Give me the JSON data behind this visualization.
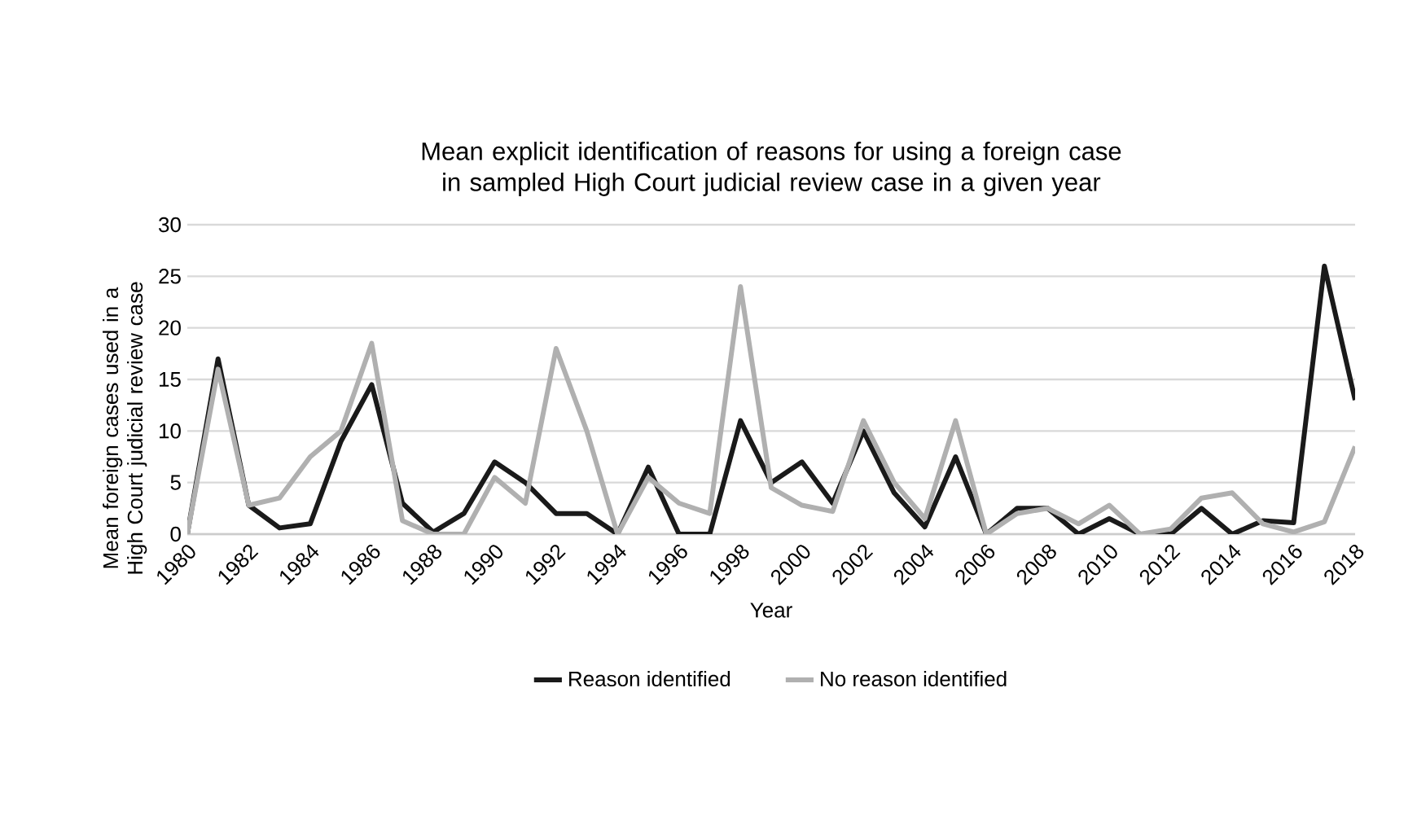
{
  "chart_data": {
    "type": "line",
    "title": "Mean explicit identification of reasons for using a foreign case in sampled High Court judicial review case in a given year",
    "xlabel": "Year",
    "ylabel": "Mean foreign cases used in a High Court judicial review case",
    "x": [
      1980,
      1981,
      1982,
      1983,
      1984,
      1985,
      1986,
      1987,
      1988,
      1989,
      1990,
      1991,
      1992,
      1993,
      1994,
      1995,
      1996,
      1997,
      1998,
      1999,
      2000,
      2001,
      2002,
      2003,
      2004,
      2005,
      2006,
      2007,
      2008,
      2009,
      2010,
      2011,
      2012,
      2013,
      2014,
      2015,
      2016,
      2017,
      2018
    ],
    "series": [
      {
        "name": "Reason identified",
        "color": "#1a1a1a",
        "values": [
          0,
          17,
          2.8,
          0.6,
          1,
          9,
          14.5,
          3,
          0.2,
          2,
          7,
          5,
          2,
          2,
          0,
          6.5,
          0,
          0,
          11,
          5,
          7,
          3,
          10,
          4,
          0.7,
          7.5,
          0,
          2.5,
          2.5,
          0,
          1.5,
          0,
          0,
          2.5,
          0,
          1.3,
          1.1,
          26,
          13
        ]
      },
      {
        "name": "No reason identified",
        "color": "#b0b0b0",
        "values": [
          0,
          16,
          2.8,
          3.5,
          7.5,
          10,
          18.5,
          1.3,
          0,
          0,
          5.5,
          3,
          18,
          10,
          0,
          5.5,
          3,
          2,
          24,
          4.5,
          2.8,
          2.2,
          11,
          5,
          1.5,
          11,
          0,
          2,
          2.5,
          1,
          2.8,
          0,
          0.5,
          3.5,
          4,
          1,
          0.2,
          1.2,
          8.5
        ]
      }
    ],
    "xlim": [
      1980,
      2018
    ],
    "xticks": [
      1980,
      1982,
      1984,
      1986,
      1988,
      1990,
      1992,
      1994,
      1996,
      1998,
      2000,
      2002,
      2004,
      2006,
      2008,
      2010,
      2012,
      2014,
      2016,
      2018
    ],
    "ylim": [
      0,
      30
    ],
    "yticks": [
      0,
      5,
      10,
      15,
      20,
      25,
      30
    ],
    "grid": "y",
    "legend": "bottom",
    "marker": "none",
    "line_style": "solid"
  }
}
